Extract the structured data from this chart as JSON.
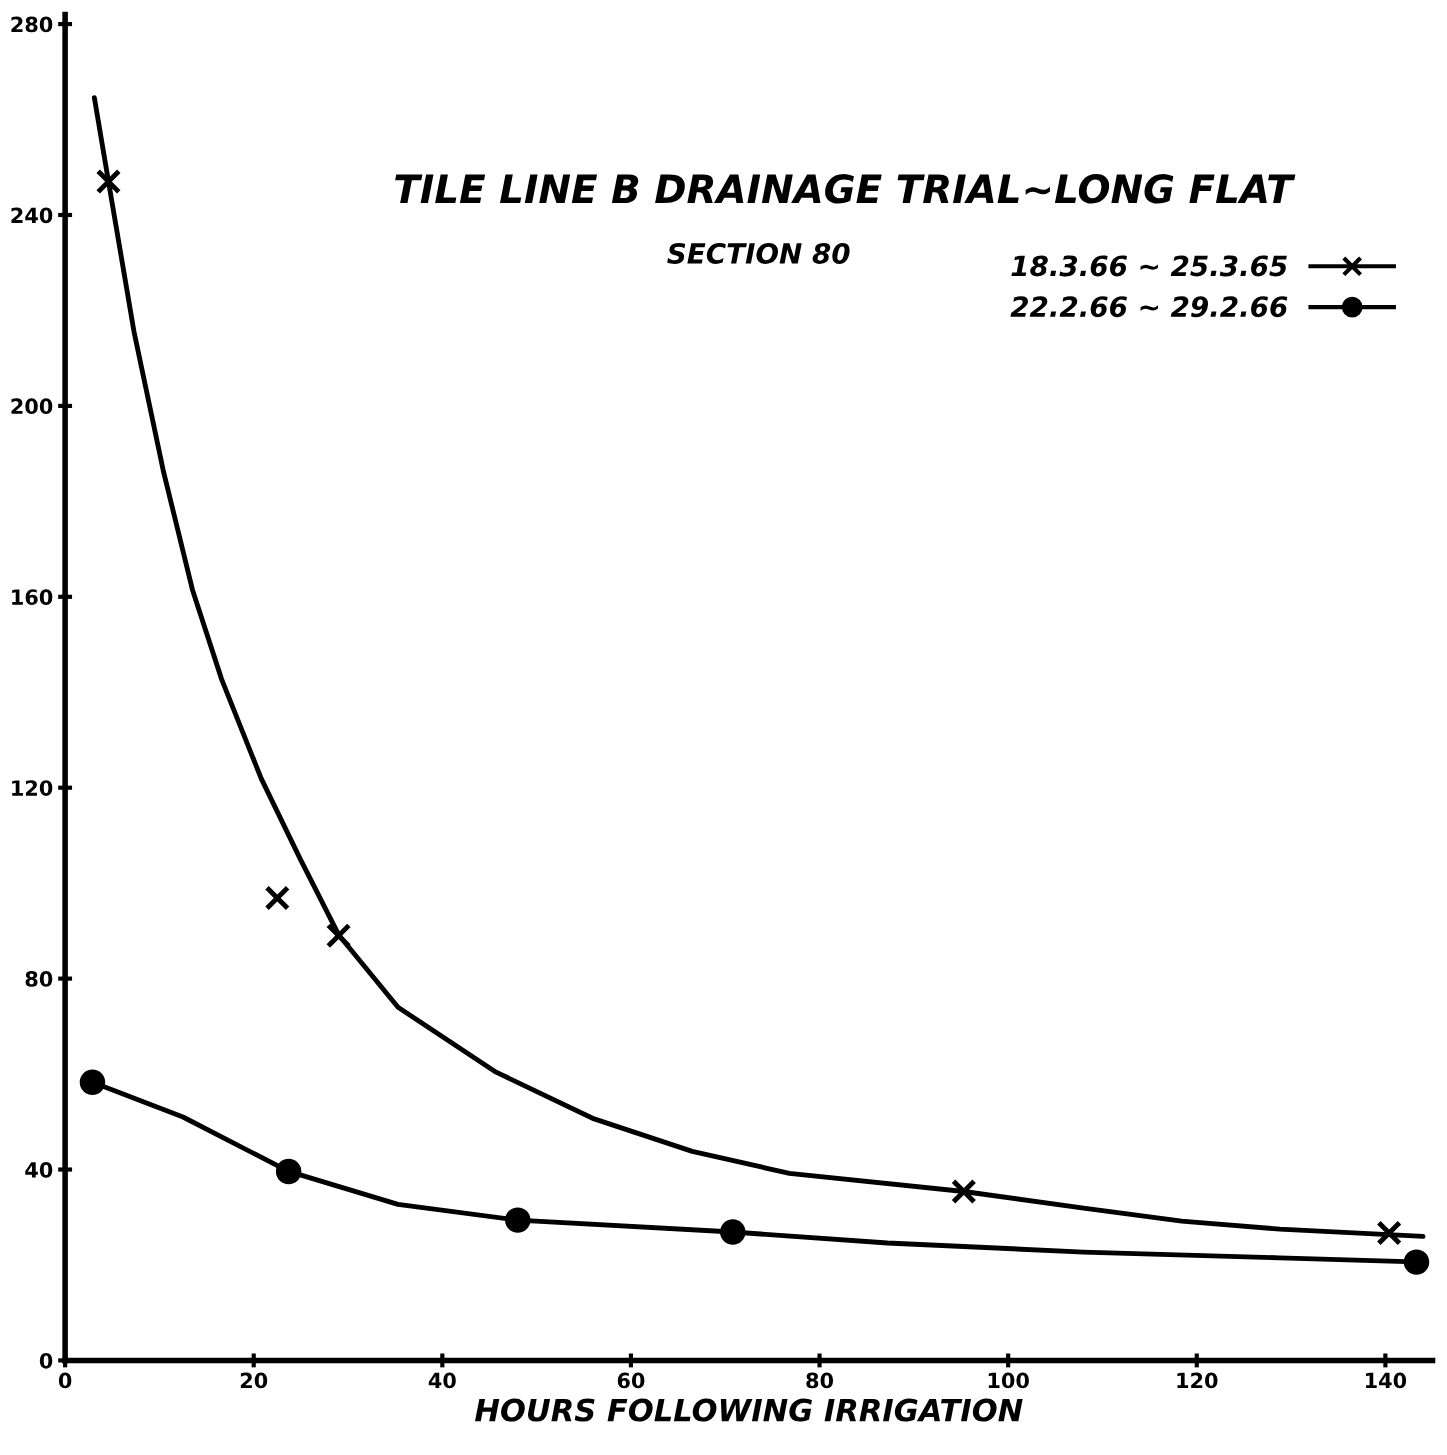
{
  "chart_data": {
    "type": "line",
    "title": "TILE LINE B DRAINAGE TRIAL~LONG FLAT",
    "subtitle": "SECTION 80",
    "xlabel": "HOURS FOLLOWING IRRIGATION",
    "xlim": [
      0,
      145
    ],
    "xticks": [
      0,
      20,
      40,
      60,
      80,
      100,
      120,
      140
    ],
    "ylim": [
      0,
      282
    ],
    "yticks": [
      0,
      40,
      80,
      120,
      160,
      200,
      240,
      280
    ],
    "grid": false,
    "legend": "top right",
    "series": [
      {
        "color": "#000000",
        "marker": "none",
        "x": [
          3.1,
          4.6,
          7.3,
          10.4,
          13.5,
          16.6,
          20.8,
          24.9,
          29,
          35.3,
          45.7,
          56.1,
          66.5,
          76.8,
          95.3,
          108,
          118.4,
          128.8,
          144
        ],
        "values": [
          264.6,
          247,
          215.6,
          186.5,
          161.5,
          142.7,
          121.9,
          105.2,
          89.2,
          74,
          60.4,
          50.6,
          43.8,
          39.2,
          35.4,
          31.9,
          29.2,
          27.5,
          26
        ]
      },
      {
        "type": "scatter",
        "name": "18.3.66 ~ 25.3.65",
        "color": "#000000",
        "marker": "cross",
        "x": [
          4.6,
          22.5,
          29,
          95.3,
          140.4
        ],
        "values": [
          247,
          96.9,
          89,
          35.4,
          26.7
        ]
      },
      {
        "color": "#000000",
        "marker": "none",
        "x": [
          2.9,
          12.5,
          23.7,
          35.3,
          48,
          70.8,
          87.2,
          108,
          128.8,
          144
        ],
        "values": [
          58.3,
          51,
          39.6,
          32.7,
          29.4,
          26.9,
          24.6,
          22.7,
          21.5,
          20.6
        ]
      },
      {
        "type": "scatter",
        "name": "22.2.66 ~ 29.2.66",
        "color": "#000000",
        "marker": "circle",
        "x": [
          2.9,
          23.7,
          48,
          70.8,
          143.3
        ],
        "values": [
          58.3,
          39.6,
          29.4,
          26.9,
          20.6
        ]
      }
    ]
  }
}
